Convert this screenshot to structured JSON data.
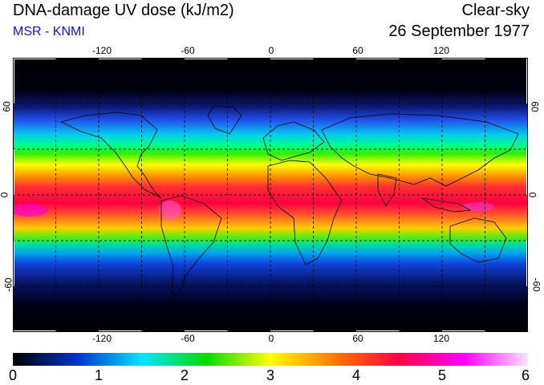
{
  "header": {
    "title": "DNA-damage UV dose (kJ/m2)",
    "subtitle": "MSR - KNMI",
    "mode": "Clear-sky",
    "date": "26 September 1977"
  },
  "axes": {
    "lon_ticks": [
      "-120",
      "-60",
      "0",
      "60",
      "120"
    ],
    "lat_ticks": [
      "60",
      "0",
      "-60"
    ]
  },
  "colorbar": {
    "ticks": [
      "0",
      "1",
      "2",
      "3",
      "4",
      "5",
      "6"
    ],
    "colors": [
      "#000000",
      "#0033cc",
      "#00e5ff",
      "#00dd00",
      "#ffff00",
      "#ff7700",
      "#ff0044",
      "#ff00ff",
      "#ffe0ff"
    ]
  }
}
